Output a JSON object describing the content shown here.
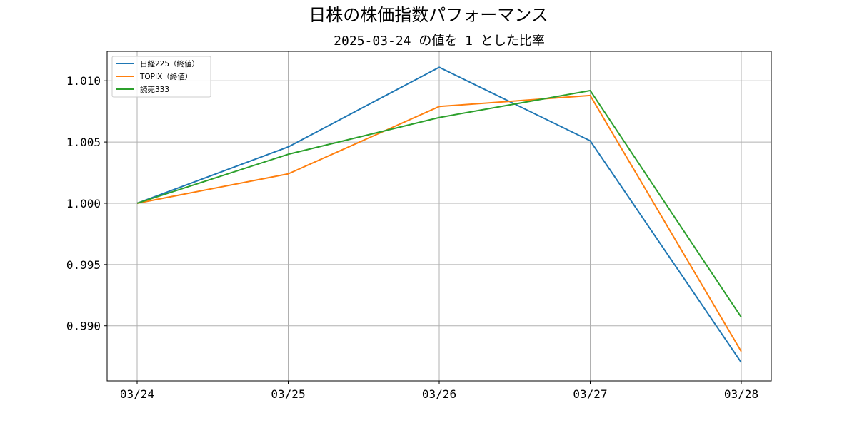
{
  "chart_data": {
    "type": "line",
    "title": "日株の株価指数パフォーマンス",
    "subtitle": "2025-03-24 の値を 1 とした比率",
    "xlabel": "",
    "ylabel": "",
    "categories": [
      "03/24",
      "03/25",
      "03/26",
      "03/27",
      "03/28"
    ],
    "ylim": [
      0.9855,
      1.0124
    ],
    "yticks": [
      0.99,
      0.995,
      1.0,
      1.005,
      1.01
    ],
    "ytick_labels": [
      "0.990",
      "0.995",
      "1.000",
      "1.005",
      "1.010"
    ],
    "grid": true,
    "legend_position": "top-left",
    "series": [
      {
        "name": "日経225（終値）",
        "color": "#1f77b4",
        "values": [
          1.0,
          1.0046,
          1.0111,
          1.0051,
          0.987
        ]
      },
      {
        "name": "TOPIX（終値）",
        "color": "#ff7f0e",
        "values": [
          1.0,
          1.0024,
          1.0079,
          1.0088,
          0.9879
        ]
      },
      {
        "name": "読売333",
        "color": "#2ca02c",
        "values": [
          1.0,
          1.004,
          1.007,
          1.0092,
          0.9907
        ]
      }
    ]
  }
}
